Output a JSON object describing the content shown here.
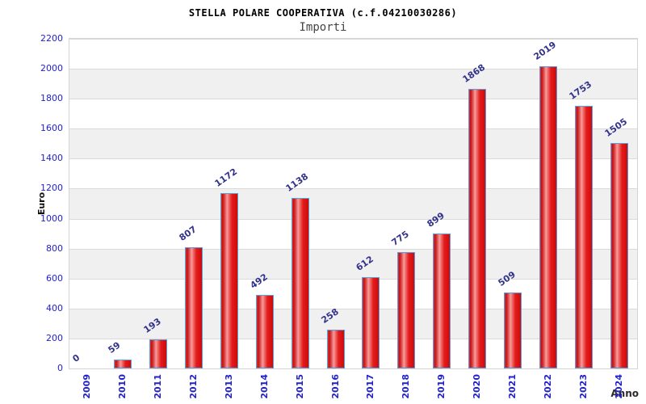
{
  "header": {
    "title": "STELLA POLARE COOPERATIVA (c.f.04210030286)",
    "subtitle": "Importi"
  },
  "chart_data": {
    "type": "bar",
    "title": "STELLA POLARE COOPERATIVA (c.f.04210030286)",
    "subtitle": "Importi",
    "categories": [
      "2009",
      "2010",
      "2011",
      "2012",
      "2013",
      "2014",
      "2015",
      "2016",
      "2017",
      "2018",
      "2019",
      "2020",
      "2021",
      "2022",
      "2023",
      "2024"
    ],
    "values": [
      0,
      59,
      193,
      807,
      1172,
      492,
      1138,
      258,
      612,
      775,
      899,
      1868,
      509,
      2019,
      1753,
      1505
    ],
    "xlabel": "Anno",
    "ylabel": "Euro",
    "ylim": [
      0,
      2200
    ],
    "ytick_step": 200,
    "yticks": [
      0,
      200,
      400,
      600,
      800,
      1000,
      1200,
      1400,
      1600,
      1800,
      2000,
      2200
    ],
    "grid": "horizontal-bands-alternating",
    "legend": "none",
    "bar_value_labels": "rotated-above-bars",
    "colors": {
      "bar_fill": "#e01515",
      "bar_fill_highlight": "#f79c9c",
      "bar_border": "#55a0e0",
      "tick_label": "#2222cc",
      "value_label": "#32328c",
      "band_gray": "#f0f0f0",
      "band_white": "#ffffff",
      "gridline": "#dadada",
      "plot_border": "#d4d4d4",
      "title_color": "#000000",
      "subtitle_color": "#444444"
    }
  }
}
